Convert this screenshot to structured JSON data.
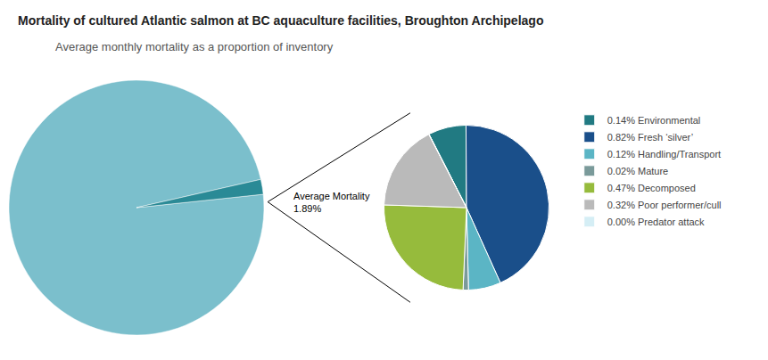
{
  "chart_data": [
    {
      "type": "pie",
      "title": "Mortality of cultured Atlantic salmon at BC aquaculture facilities, Broughton Archipelago",
      "subtitle": "Average monthly mortality as a proportion of inventory",
      "values": [
        98.11,
        1.89
      ],
      "colors": [
        "#7BBFCC",
        "#2A8A96"
      ],
      "annotations": [
        "Average Mortality",
        "1.89%"
      ]
    },
    {
      "type": "pie",
      "categories": [
        "0.14% Environmental",
        "0.82% Fresh ‘silver’",
        "0.12% Handling/Transport",
        "0.02% Mature",
        "0.47% Decomposed",
        "0.32% Poor performer/cull",
        "0.00% Predator attack"
      ],
      "values": [
        0.14,
        0.82,
        0.12,
        0.02,
        0.47,
        0.32,
        0.001
      ],
      "colors": [
        "#217A82",
        "#1A4F8A",
        "#5BB5C5",
        "#7A9A9A",
        "#96BB3C",
        "#BABABA",
        "#D5EEF5"
      ],
      "legend": "right"
    }
  ]
}
